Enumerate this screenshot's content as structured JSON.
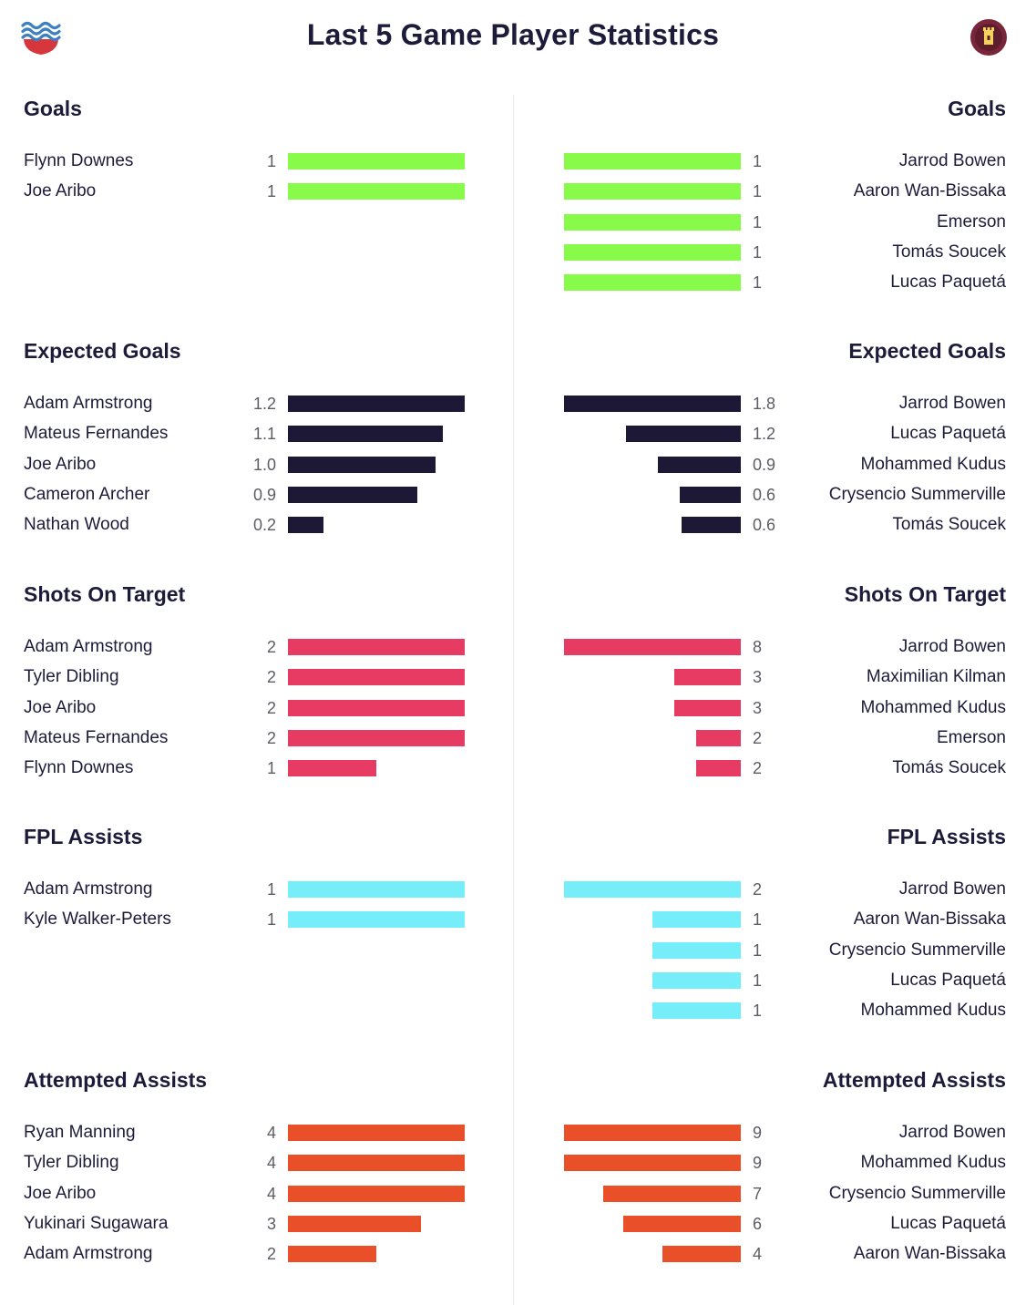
{
  "header": {
    "title": "Last 5 Game Player Statistics",
    "left_logo_icon": "southampton-crest-icon",
    "right_logo_icon": "west-ham-crest-icon"
  },
  "chart_data": [
    {
      "type": "bar",
      "title": "Goals",
      "color": "#88fb4a",
      "left": {
        "rows": [
          {
            "name": "Flynn Downes",
            "label": "1",
            "value": 1
          },
          {
            "name": "Joe Aribo",
            "label": "1",
            "value": 1
          }
        ]
      },
      "right": {
        "rows": [
          {
            "name": "Jarrod Bowen",
            "label": "1",
            "value": 1
          },
          {
            "name": "Aaron Wan-Bissaka",
            "label": "1",
            "value": 1
          },
          {
            "name": "Emerson",
            "label": "1",
            "value": 1
          },
          {
            "name": "Tomás Soucek",
            "label": "1",
            "value": 1
          },
          {
            "name": "Lucas Paquetá",
            "label": "1",
            "value": 1
          }
        ]
      }
    },
    {
      "type": "bar",
      "title": "Expected Goals",
      "color": "#1c1836",
      "left": {
        "rows": [
          {
            "name": "Adam Armstrong",
            "label": "1.2",
            "value": 1.2
          },
          {
            "name": "Mateus Fernandes",
            "label": "1.1",
            "value": 1.05
          },
          {
            "name": "Joe Aribo",
            "label": "1.0",
            "value": 1.0
          },
          {
            "name": "Cameron Archer",
            "label": "0.9",
            "value": 0.88
          },
          {
            "name": "Nathan Wood",
            "label": "0.2",
            "value": 0.24
          }
        ]
      },
      "right": {
        "rows": [
          {
            "name": "Jarrod Bowen",
            "label": "1.8",
            "value": 1.8
          },
          {
            "name": "Lucas Paquetá",
            "label": "1.2",
            "value": 1.17
          },
          {
            "name": "Mohammed Kudus",
            "label": "0.9",
            "value": 0.84
          },
          {
            "name": "Crysencio Summerville",
            "label": "0.6",
            "value": 0.62
          },
          {
            "name": "Tomás Soucek",
            "label": "0.6",
            "value": 0.6
          }
        ]
      }
    },
    {
      "type": "bar",
      "title": "Shots On Target",
      "color": "#e83b64",
      "left": {
        "rows": [
          {
            "name": "Adam Armstrong",
            "label": "2",
            "value": 2
          },
          {
            "name": "Tyler Dibling",
            "label": "2",
            "value": 2
          },
          {
            "name": "Joe Aribo",
            "label": "2",
            "value": 2
          },
          {
            "name": "Mateus Fernandes",
            "label": "2",
            "value": 2
          },
          {
            "name": "Flynn Downes",
            "label": "1",
            "value": 1
          }
        ]
      },
      "right": {
        "rows": [
          {
            "name": "Jarrod Bowen",
            "label": "8",
            "value": 8
          },
          {
            "name": "Maximilian Kilman",
            "label": "3",
            "value": 3
          },
          {
            "name": "Mohammed Kudus",
            "label": "3",
            "value": 3
          },
          {
            "name": "Emerson",
            "label": "2",
            "value": 2
          },
          {
            "name": "Tomás Soucek",
            "label": "2",
            "value": 2
          }
        ]
      }
    },
    {
      "type": "bar",
      "title": "FPL Assists",
      "color": "#76eefa",
      "left": {
        "rows": [
          {
            "name": "Adam Armstrong",
            "label": "1",
            "value": 1
          },
          {
            "name": "Kyle Walker-Peters",
            "label": "1",
            "value": 1
          }
        ]
      },
      "right": {
        "rows": [
          {
            "name": "Jarrod Bowen",
            "label": "2",
            "value": 2
          },
          {
            "name": "Aaron Wan-Bissaka",
            "label": "1",
            "value": 1
          },
          {
            "name": "Crysencio Summerville",
            "label": "1",
            "value": 1
          },
          {
            "name": "Lucas Paquetá",
            "label": "1",
            "value": 1
          },
          {
            "name": "Mohammed Kudus",
            "label": "1",
            "value": 1
          }
        ]
      }
    },
    {
      "type": "bar",
      "title": "Attempted Assists",
      "color": "#e9502a",
      "left": {
        "rows": [
          {
            "name": "Ryan Manning",
            "label": "4",
            "value": 4
          },
          {
            "name": "Tyler Dibling",
            "label": "4",
            "value": 4
          },
          {
            "name": "Joe Aribo",
            "label": "4",
            "value": 4
          },
          {
            "name": "Yukinari Sugawara",
            "label": "3",
            "value": 3
          },
          {
            "name": "Adam Armstrong",
            "label": "2",
            "value": 2
          }
        ]
      },
      "right": {
        "rows": [
          {
            "name": "Jarrod Bowen",
            "label": "9",
            "value": 9
          },
          {
            "name": "Mohammed Kudus",
            "label": "9",
            "value": 9
          },
          {
            "name": "Crysencio Summerville",
            "label": "7",
            "value": 7
          },
          {
            "name": "Lucas Paquetá",
            "label": "6",
            "value": 6
          },
          {
            "name": "Aaron Wan-Bissaka",
            "label": "4",
            "value": 4
          }
        ]
      }
    }
  ]
}
